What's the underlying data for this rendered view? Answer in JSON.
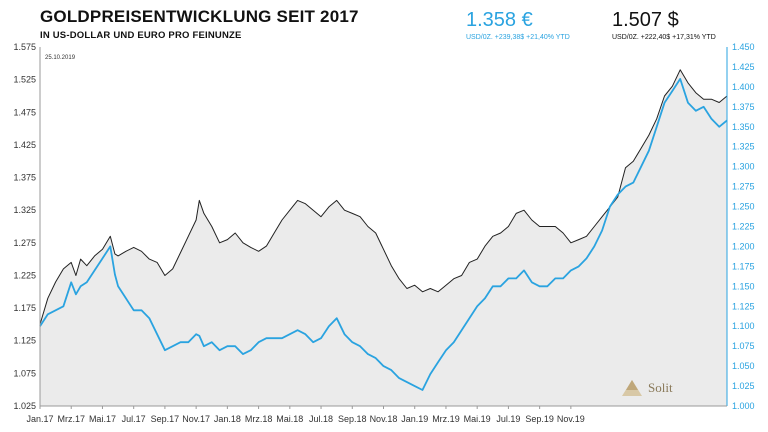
{
  "header": {
    "title": "GOLDPREISENTWICKLUNG SEIT 2017",
    "subtitle": "IN US-DOLLAR UND EURO PRO FEINUNZE"
  },
  "prices": {
    "eur": {
      "value": "1.358 €",
      "detail": "USD/0Z. +239,38$ +21,40% YTD",
      "color": "#2aa3e0"
    },
    "usd": {
      "value": "1.507 $",
      "detail": "USD/0Z. +222,40$ +17,31% YTD",
      "color": "#111111"
    }
  },
  "logo": {
    "text": "Solit"
  },
  "chart_data": {
    "type": "line",
    "date_label": "25.10.2019",
    "x_ticks": [
      "Jan.17",
      "Mrz.17",
      "Mai.17",
      "Jul.17",
      "Sep.17",
      "Nov.17",
      "Jan.18",
      "Mrz.18",
      "Mai.18",
      "Jul.18",
      "Sep.18",
      "Nov.18",
      "Jan.19",
      "Mrz.19",
      "Mai.19",
      "Jul.19",
      "Sep.19",
      "Nov.19"
    ],
    "y_left_ticks": [
      "1.025",
      "1.075",
      "1.125",
      "1.175",
      "1.225",
      "1.275",
      "1.325",
      "1.375",
      "1.425",
      "1.475",
      "1.525",
      "1.575"
    ],
    "y_right_ticks": [
      "1.000",
      "1.025",
      "1.050",
      "1.075",
      "1.100",
      "1.125",
      "1.150",
      "1.175",
      "1.200",
      "1.225",
      "1.250",
      "1.275",
      "1.300",
      "1.325",
      "1.350",
      "1.375",
      "1.400",
      "1.425",
      "1.450"
    ],
    "ylim_left": [
      1025,
      1575
    ],
    "ylim_right": [
      1000,
      1450
    ],
    "x_range_months": [
      0,
      34
    ],
    "grid": false,
    "series": [
      {
        "name": "USD",
        "axis": "left",
        "color": "#222222",
        "fill": "#ebebeb",
        "points": [
          [
            0,
            1150
          ],
          [
            0.5,
            1190
          ],
          [
            1,
            1215
          ],
          [
            1.5,
            1235
          ],
          [
            2,
            1245
          ],
          [
            2.3,
            1225
          ],
          [
            2.6,
            1250
          ],
          [
            3,
            1240
          ],
          [
            3.5,
            1255
          ],
          [
            4,
            1265
          ],
          [
            4.5,
            1285
          ],
          [
            4.8,
            1258
          ],
          [
            5,
            1255
          ],
          [
            5.5,
            1262
          ],
          [
            6,
            1268
          ],
          [
            6.5,
            1262
          ],
          [
            7,
            1250
          ],
          [
            7.5,
            1245
          ],
          [
            8,
            1225
          ],
          [
            8.5,
            1235
          ],
          [
            9,
            1260
          ],
          [
            9.5,
            1285
          ],
          [
            10,
            1310
          ],
          [
            10.2,
            1340
          ],
          [
            10.5,
            1320
          ],
          [
            11,
            1300
          ],
          [
            11.5,
            1275
          ],
          [
            12,
            1280
          ],
          [
            12.5,
            1290
          ],
          [
            13,
            1275
          ],
          [
            13.5,
            1268
          ],
          [
            14,
            1262
          ],
          [
            14.5,
            1270
          ],
          [
            15,
            1290
          ],
          [
            15.5,
            1310
          ],
          [
            16,
            1325
          ],
          [
            16.5,
            1340
          ],
          [
            17,
            1335
          ],
          [
            17.5,
            1325
          ],
          [
            18,
            1315
          ],
          [
            18.5,
            1330
          ],
          [
            19,
            1340
          ],
          [
            19.5,
            1325
          ],
          [
            20,
            1320
          ],
          [
            20.5,
            1315
          ],
          [
            21,
            1300
          ],
          [
            21.5,
            1290
          ],
          [
            22,
            1265
          ],
          [
            22.5,
            1240
          ],
          [
            23,
            1220
          ],
          [
            23.5,
            1205
          ],
          [
            24,
            1210
          ],
          [
            24.5,
            1200
          ],
          [
            25,
            1205
          ],
          [
            25.5,
            1200
          ],
          [
            26,
            1210
          ],
          [
            26.5,
            1220
          ],
          [
            27,
            1225
          ],
          [
            27.5,
            1245
          ],
          [
            28,
            1250
          ],
          [
            28.5,
            1270
          ],
          [
            29,
            1285
          ],
          [
            29.5,
            1290
          ],
          [
            30,
            1300
          ],
          [
            30.5,
            1320
          ],
          [
            31,
            1325
          ],
          [
            31.5,
            1310
          ],
          [
            32,
            1300
          ],
          [
            32.5,
            1300
          ],
          [
            33,
            1300
          ],
          [
            33.5,
            1290
          ],
          [
            34,
            1275
          ],
          [
            34.5,
            1280
          ],
          [
            35,
            1285
          ],
          [
            35.5,
            1300
          ],
          [
            36,
            1315
          ],
          [
            36.5,
            1330
          ],
          [
            37,
            1345
          ],
          [
            37.5,
            1390
          ],
          [
            38,
            1400
          ],
          [
            38.5,
            1420
          ],
          [
            39,
            1440
          ],
          [
            39.5,
            1465
          ],
          [
            40,
            1500
          ],
          [
            40.5,
            1515
          ],
          [
            41,
            1540
          ],
          [
            41.5,
            1520
          ],
          [
            42,
            1505
          ],
          [
            42.5,
            1495
          ],
          [
            43,
            1495
          ],
          [
            43.5,
            1490
          ],
          [
            44,
            1500
          ]
        ]
      },
      {
        "name": "EUR",
        "axis": "right",
        "color": "#2aa3e0",
        "points": [
          [
            0,
            1100
          ],
          [
            0.5,
            1115
          ],
          [
            1,
            1120
          ],
          [
            1.5,
            1125
          ],
          [
            2,
            1155
          ],
          [
            2.3,
            1140
          ],
          [
            2.6,
            1150
          ],
          [
            3,
            1155
          ],
          [
            3.5,
            1170
          ],
          [
            4,
            1185
          ],
          [
            4.5,
            1200
          ],
          [
            4.8,
            1165
          ],
          [
            5,
            1150
          ],
          [
            5.5,
            1135
          ],
          [
            6,
            1120
          ],
          [
            6.5,
            1120
          ],
          [
            7,
            1110
          ],
          [
            7.5,
            1090
          ],
          [
            8,
            1070
          ],
          [
            8.5,
            1075
          ],
          [
            9,
            1080
          ],
          [
            9.5,
            1080
          ],
          [
            10,
            1090
          ],
          [
            10.2,
            1088
          ],
          [
            10.5,
            1075
          ],
          [
            11,
            1080
          ],
          [
            11.5,
            1070
          ],
          [
            12,
            1075
          ],
          [
            12.5,
            1075
          ],
          [
            13,
            1065
          ],
          [
            13.5,
            1070
          ],
          [
            14,
            1080
          ],
          [
            14.5,
            1085
          ],
          [
            15,
            1085
          ],
          [
            15.5,
            1085
          ],
          [
            16,
            1090
          ],
          [
            16.5,
            1095
          ],
          [
            17,
            1090
          ],
          [
            17.5,
            1080
          ],
          [
            18,
            1085
          ],
          [
            18.5,
            1100
          ],
          [
            19,
            1110
          ],
          [
            19.5,
            1090
          ],
          [
            20,
            1080
          ],
          [
            20.5,
            1075
          ],
          [
            21,
            1065
          ],
          [
            21.5,
            1060
          ],
          [
            22,
            1050
          ],
          [
            22.5,
            1045
          ],
          [
            23,
            1035
          ],
          [
            23.5,
            1030
          ],
          [
            24,
            1025
          ],
          [
            24.5,
            1020
          ],
          [
            25,
            1040
          ],
          [
            25.5,
            1055
          ],
          [
            26,
            1070
          ],
          [
            26.5,
            1080
          ],
          [
            27,
            1095
          ],
          [
            27.5,
            1110
          ],
          [
            28,
            1125
          ],
          [
            28.5,
            1135
          ],
          [
            29,
            1150
          ],
          [
            29.5,
            1150
          ],
          [
            30,
            1160
          ],
          [
            30.5,
            1160
          ],
          [
            31,
            1170
          ],
          [
            31.5,
            1155
          ],
          [
            32,
            1150
          ],
          [
            32.5,
            1150
          ],
          [
            33,
            1160
          ],
          [
            33.5,
            1160
          ],
          [
            34,
            1170
          ],
          [
            34.5,
            1175
          ],
          [
            35,
            1185
          ],
          [
            35.5,
            1200
          ],
          [
            36,
            1220
          ],
          [
            36.5,
            1250
          ],
          [
            37,
            1265
          ],
          [
            37.5,
            1275
          ],
          [
            38,
            1280
          ],
          [
            38.5,
            1300
          ],
          [
            39,
            1320
          ],
          [
            39.5,
            1350
          ],
          [
            40,
            1380
          ],
          [
            40.5,
            1395
          ],
          [
            41,
            1410
          ],
          [
            41.5,
            1380
          ],
          [
            42,
            1370
          ],
          [
            42.5,
            1375
          ],
          [
            43,
            1360
          ],
          [
            43.5,
            1350
          ],
          [
            44,
            1358
          ]
        ]
      }
    ]
  }
}
